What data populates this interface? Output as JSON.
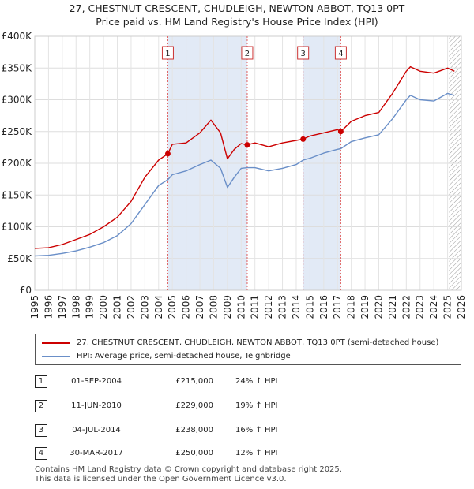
{
  "header": {
    "title": "27, CHESTNUT CRESCENT, CHUDLEIGH, NEWTON ABBOT, TQ13 0PT",
    "subtitle": "Price paid vs. HM Land Registry's House Price Index (HPI)"
  },
  "chart_data": {
    "type": "line",
    "ylim": [
      0,
      400000
    ],
    "xlim": [
      1995,
      2026
    ],
    "y_ticks": [
      {
        "value": 0,
        "label": "£0"
      },
      {
        "value": 50000,
        "label": "£50K"
      },
      {
        "value": 100000,
        "label": "£100K"
      },
      {
        "value": 150000,
        "label": "£150K"
      },
      {
        "value": 200000,
        "label": "£200K"
      },
      {
        "value": 250000,
        "label": "£250K"
      },
      {
        "value": 300000,
        "label": "£300K"
      },
      {
        "value": 350000,
        "label": "£350K"
      },
      {
        "value": 400000,
        "label": "£400K"
      }
    ],
    "x_ticks": [
      "1995",
      "1996",
      "1997",
      "1998",
      "1999",
      "2000",
      "2001",
      "2002",
      "2003",
      "2004",
      "2005",
      "2006",
      "2007",
      "2008",
      "2009",
      "2010",
      "2011",
      "2012",
      "2013",
      "2014",
      "2015",
      "2016",
      "2017",
      "2018",
      "2019",
      "2020",
      "2021",
      "2022",
      "2023",
      "2024",
      "2025",
      "2026"
    ],
    "shaded_periods": [
      [
        2004.67,
        2010.44
      ],
      [
        2014.5,
        2017.24
      ]
    ],
    "hatched_from": 2025.1,
    "series": [
      {
        "name": "27, CHESTNUT CRESCENT, CHUDLEIGH, NEWTON ABBOT, TQ13 0PT (semi-detached house)",
        "color": "#cc0000",
        "points": [
          [
            1995,
            66000
          ],
          [
            1996,
            67000
          ],
          [
            1997,
            72000
          ],
          [
            1998,
            80000
          ],
          [
            1999,
            88000
          ],
          [
            2000,
            100000
          ],
          [
            2001,
            115000
          ],
          [
            2002,
            140000
          ],
          [
            2003,
            178000
          ],
          [
            2004,
            205000
          ],
          [
            2004.67,
            215000
          ],
          [
            2005,
            230000
          ],
          [
            2006,
            232000
          ],
          [
            2007,
            248000
          ],
          [
            2007.8,
            268000
          ],
          [
            2008.5,
            248000
          ],
          [
            2009,
            207000
          ],
          [
            2009.5,
            222000
          ],
          [
            2010,
            231000
          ],
          [
            2010.44,
            229000
          ],
          [
            2011,
            232000
          ],
          [
            2012,
            226000
          ],
          [
            2013,
            232000
          ],
          [
            2014,
            236000
          ],
          [
            2014.5,
            238000
          ],
          [
            2015,
            243000
          ],
          [
            2016,
            248000
          ],
          [
            2017,
            253000
          ],
          [
            2017.24,
            250000
          ],
          [
            2018,
            266000
          ],
          [
            2019,
            275000
          ],
          [
            2020,
            280000
          ],
          [
            2021,
            310000
          ],
          [
            2022,
            345000
          ],
          [
            2022.3,
            352000
          ],
          [
            2023,
            345000
          ],
          [
            2024,
            342000
          ],
          [
            2025,
            350000
          ],
          [
            2025.5,
            345000
          ]
        ]
      },
      {
        "name": "HPI: Average price, semi-detached house, Teignbridge",
        "color": "#6a8fc8",
        "points": [
          [
            1995,
            54000
          ],
          [
            1996,
            55000
          ],
          [
            1997,
            58000
          ],
          [
            1998,
            62000
          ],
          [
            1999,
            68000
          ],
          [
            2000,
            75000
          ],
          [
            2001,
            86000
          ],
          [
            2002,
            105000
          ],
          [
            2003,
            135000
          ],
          [
            2004,
            165000
          ],
          [
            2004.67,
            174000
          ],
          [
            2005,
            182000
          ],
          [
            2006,
            188000
          ],
          [
            2007,
            198000
          ],
          [
            2007.8,
            205000
          ],
          [
            2008.5,
            192000
          ],
          [
            2009,
            162000
          ],
          [
            2009.5,
            178000
          ],
          [
            2010,
            192000
          ],
          [
            2010.44,
            193000
          ],
          [
            2011,
            193000
          ],
          [
            2012,
            188000
          ],
          [
            2013,
            192000
          ],
          [
            2014,
            198000
          ],
          [
            2014.5,
            205000
          ],
          [
            2015,
            208000
          ],
          [
            2016,
            216000
          ],
          [
            2017,
            222000
          ],
          [
            2017.24,
            223000
          ],
          [
            2018,
            234000
          ],
          [
            2019,
            240000
          ],
          [
            2020,
            245000
          ],
          [
            2021,
            270000
          ],
          [
            2022,
            300000
          ],
          [
            2022.3,
            307000
          ],
          [
            2023,
            300000
          ],
          [
            2024,
            298000
          ],
          [
            2025,
            310000
          ],
          [
            2025.5,
            307000
          ]
        ]
      }
    ],
    "sales": [
      {
        "label": "1",
        "year": 2004.67,
        "price": 215000
      },
      {
        "label": "2",
        "year": 2010.44,
        "price": 229000
      },
      {
        "label": "3",
        "year": 2014.5,
        "price": 238000
      },
      {
        "label": "4",
        "year": 2017.24,
        "price": 250000
      }
    ]
  },
  "legend": [
    {
      "label": "27, CHESTNUT CRESCENT, CHUDLEIGH, NEWTON ABBOT, TQ13 0PT (semi-detached house)",
      "color": "#cc0000"
    },
    {
      "label": "HPI: Average price, semi-detached house, Teignbridge",
      "color": "#6a8fc8"
    }
  ],
  "transactions": [
    {
      "num": "1",
      "date": "01-SEP-2004",
      "price": "£215,000",
      "hpi": "24% ↑ HPI"
    },
    {
      "num": "2",
      "date": "11-JUN-2010",
      "price": "£229,000",
      "hpi": "19% ↑ HPI"
    },
    {
      "num": "3",
      "date": "04-JUL-2014",
      "price": "£238,000",
      "hpi": "16% ↑ HPI"
    },
    {
      "num": "4",
      "date": "30-MAR-2017",
      "price": "£250,000",
      "hpi": "12% ↑ HPI"
    }
  ],
  "footer": {
    "line1": "Contains HM Land Registry data © Crown copyright and database right 2025.",
    "line2": "This data is licensed under the Open Government Licence v3.0."
  }
}
